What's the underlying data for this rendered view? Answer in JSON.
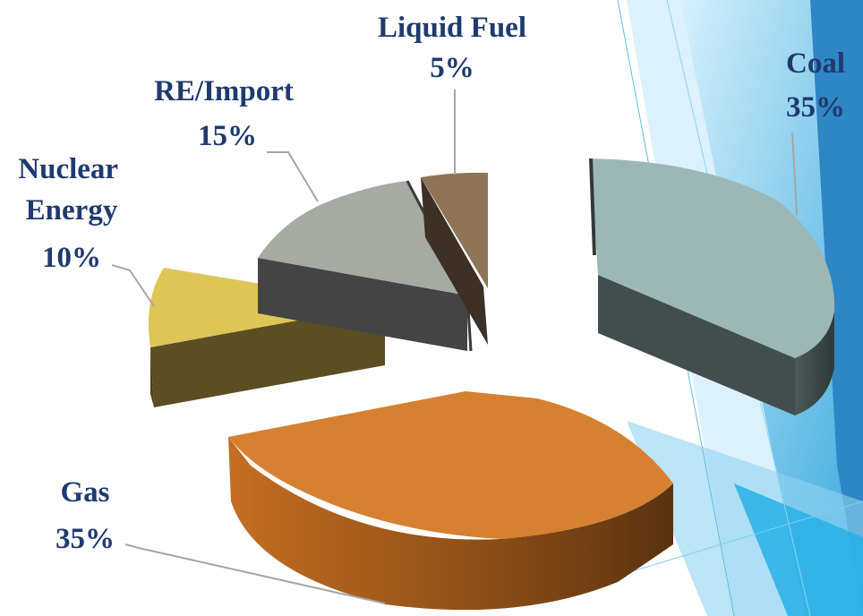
{
  "chart_data": {
    "type": "pie",
    "variant": "3d-exploded",
    "title": "",
    "slices": [
      {
        "name": "Coal",
        "value": 35,
        "label": "35%",
        "color": "#9cb8b6"
      },
      {
        "name": "Gas",
        "value": 35,
        "label": "35%",
        "color": "#d68131"
      },
      {
        "name": "Nuclear Energy",
        "value": 10,
        "label": "10%",
        "color": "#ddc656"
      },
      {
        "name": "RE/Import",
        "value": 15,
        "label": "15%",
        "color": "#a5aaa2"
      },
      {
        "name": "Liquid Fuel",
        "value": 5,
        "label": "5%",
        "color": "#8e7558"
      }
    ]
  },
  "theme": {
    "background_accent": "#56bde8",
    "label_color": "#1f3a6e"
  }
}
